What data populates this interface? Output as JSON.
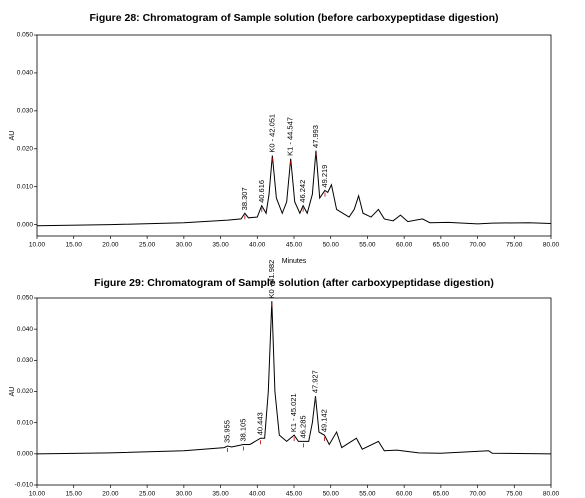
{
  "chart_data": [
    {
      "type": "line",
      "title": "Figure 28: Chromatogram of Sample solution (before carboxypeptidase digestion)",
      "y_label": "AU",
      "x_label": "Minutes",
      "color": "#000000",
      "xlim": [
        10,
        80
      ],
      "ylim": [
        -0.003,
        0.05
      ],
      "xticks": [
        {
          "value": 10,
          "label": "10.00"
        },
        {
          "value": 15,
          "label": "15.00"
        },
        {
          "value": 20,
          "label": "20.00"
        },
        {
          "value": 25,
          "label": "25.00"
        },
        {
          "value": 30,
          "label": "30.00"
        },
        {
          "value": 35,
          "label": "35.00"
        },
        {
          "value": 40,
          "label": "40.00"
        },
        {
          "value": 45,
          "label": "45.00"
        },
        {
          "value": 50,
          "label": "50.00"
        },
        {
          "value": 55,
          "label": "55.00"
        },
        {
          "value": 60,
          "label": "60.00"
        },
        {
          "value": 65,
          "label": "65.00"
        },
        {
          "value": 70,
          "label": "70.00"
        },
        {
          "value": 75,
          "label": "75.00"
        },
        {
          "value": 80,
          "label": "80.00"
        }
      ],
      "yticks": [
        {
          "value": 0,
          "label": "0.000"
        },
        {
          "value": 0.01,
          "label": "0.010"
        },
        {
          "value": 0.02,
          "label": "0.020"
        },
        {
          "value": 0.03,
          "label": "0.030"
        },
        {
          "value": 0.04,
          "label": "0.040"
        },
        {
          "value": 0.05,
          "label": "0.050"
        }
      ],
      "x": [
        10,
        20,
        30,
        36,
        37.8,
        38.3,
        38.8,
        40.0,
        40.6,
        41.2,
        41.6,
        42.05,
        42.6,
        43.4,
        44.0,
        44.55,
        45.1,
        45.8,
        46.24,
        46.8,
        47.5,
        47.99,
        48.5,
        49.2,
        49.6,
        50.1,
        50.8,
        52.5,
        53.2,
        53.8,
        54.4,
        55.5,
        56.5,
        57.3,
        58.5,
        59.5,
        60.5,
        62.5,
        63.5,
        66,
        70,
        72,
        77,
        80
      ],
      "values": [
        -0.0003,
        0.0,
        0.0005,
        0.0012,
        0.0015,
        0.003,
        0.0018,
        0.002,
        0.005,
        0.003,
        0.008,
        0.0182,
        0.007,
        0.003,
        0.006,
        0.0174,
        0.006,
        0.003,
        0.005,
        0.003,
        0.008,
        0.0195,
        0.007,
        0.009,
        0.0085,
        0.0105,
        0.004,
        0.002,
        0.004,
        0.0076,
        0.003,
        0.002,
        0.004,
        0.0015,
        0.001,
        0.0025,
        0.0008,
        0.0015,
        0.0005,
        0.0006,
        0.0002,
        0.0004,
        0.0005,
        0.0003
      ],
      "peaks": [
        {
          "x": 38.307,
          "label": "38.307"
        },
        {
          "x": 40.616,
          "label": "40.616"
        },
        {
          "x": 42.051,
          "label": "K0 - 42.051"
        },
        {
          "x": 44.547,
          "label": "K1 - 44.547"
        },
        {
          "x": 46.242,
          "label": "46.242"
        },
        {
          "x": 47.993,
          "label": "47.993"
        },
        {
          "x": 49.219,
          "label": "49.219"
        }
      ]
    },
    {
      "type": "line",
      "title": "Figure 29: Chromatogram of Sample solution (after carboxypeptidase digestion)",
      "y_label": "AU",
      "color": "#000000",
      "xlim": [
        10,
        80
      ],
      "ylim": [
        -0.01,
        0.05
      ],
      "xticks": [
        {
          "value": 10,
          "label": "10.00"
        },
        {
          "value": 15,
          "label": "15.00"
        },
        {
          "value": 20,
          "label": "20.00"
        },
        {
          "value": 25,
          "label": "25.00"
        },
        {
          "value": 30,
          "label": "30.00"
        },
        {
          "value": 35,
          "label": "35.00"
        },
        {
          "value": 40,
          "label": "40.00"
        },
        {
          "value": 45,
          "label": "45.00"
        },
        {
          "value": 50,
          "label": "50.00"
        },
        {
          "value": 55,
          "label": "55.00"
        },
        {
          "value": 60,
          "label": "60.00"
        },
        {
          "value": 65,
          "label": "65.00"
        },
        {
          "value": 70,
          "label": "70.00"
        },
        {
          "value": 75,
          "label": "75.00"
        },
        {
          "value": 80,
          "label": "80.00"
        }
      ],
      "yticks": [
        {
          "value": -0.01,
          "label": "-0.010"
        },
        {
          "value": 0,
          "label": "0.000"
        },
        {
          "value": 0.01,
          "label": "0.010"
        },
        {
          "value": 0.02,
          "label": "0.020"
        },
        {
          "value": 0.03,
          "label": "0.030"
        },
        {
          "value": 0.04,
          "label": "0.040"
        },
        {
          "value": 0.05,
          "label": "0.050"
        }
      ],
      "x": [
        10,
        20,
        30,
        35.5,
        35.955,
        36.5,
        38.105,
        39,
        40.443,
        41.0,
        41.5,
        41.98,
        42.4,
        43,
        44,
        45.021,
        45.6,
        46.285,
        47.0,
        47.5,
        47.927,
        48.4,
        49.142,
        49.8,
        50.8,
        51.5,
        53.5,
        54.3,
        56.5,
        57.3,
        59,
        62,
        65,
        71.5,
        72,
        80
      ],
      "values": [
        0.0,
        0.0003,
        0.001,
        0.002,
        0.0025,
        0.0022,
        0.003,
        0.003,
        0.005,
        0.005,
        0.02,
        0.049,
        0.02,
        0.006,
        0.004,
        0.006,
        0.004,
        0.004,
        0.004,
        0.01,
        0.0185,
        0.007,
        0.006,
        0.003,
        0.007,
        0.002,
        0.005,
        0.0015,
        0.004,
        0.001,
        0.0012,
        0.0003,
        0.0002,
        0.001,
        0.0002,
        0.0
      ],
      "peaks": [
        {
          "x": 35.955,
          "label": "35.955"
        },
        {
          "x": 38.105,
          "label": "38.105"
        },
        {
          "x": 40.443,
          "label": "40.443"
        },
        {
          "x": 41.982,
          "label": "K0 - 41.982"
        },
        {
          "x": 45.021,
          "label": "K1 - 45.021"
        },
        {
          "x": 46.285,
          "label": "46.285"
        },
        {
          "x": 47.927,
          "label": "47.927"
        },
        {
          "x": 49.142,
          "label": "49.142"
        }
      ]
    }
  ]
}
